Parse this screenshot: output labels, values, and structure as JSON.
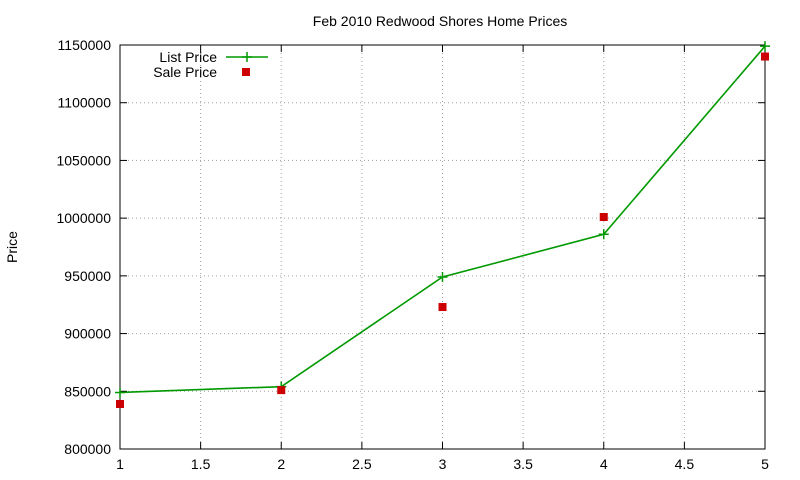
{
  "chart_data": {
    "type": "line",
    "title": "Feb 2010 Redwood Shores Home Prices",
    "xlabel": "",
    "ylabel": "Price",
    "xlim": [
      1,
      5
    ],
    "ylim": [
      800000,
      1150000
    ],
    "xticks": [
      1,
      1.5,
      2,
      2.5,
      3,
      3.5,
      4,
      4.5,
      5
    ],
    "yticks": [
      800000,
      850000,
      900000,
      950000,
      1000000,
      1050000,
      1100000,
      1150000
    ],
    "xtick_labels": [
      "1",
      "1.5",
      "2",
      "2.5",
      "3",
      "3.5",
      "4",
      "4.5",
      "5"
    ],
    "ytick_labels": [
      "800000",
      "850000",
      "900000",
      "950000",
      "1000000",
      "1050000",
      "1100000",
      "1150000"
    ],
    "grid": true,
    "legend_position": "top-left",
    "series": [
      {
        "name": "List Price",
        "style": "linespoints",
        "marker": "plus",
        "color": "#009900",
        "x": [
          1,
          2,
          3,
          4,
          5
        ],
        "y": [
          849000,
          854000,
          949000,
          986000,
          1149000
        ]
      },
      {
        "name": "Sale Price",
        "style": "points",
        "marker": "square",
        "color": "#cc0000",
        "x": [
          1,
          2,
          3,
          4,
          5
        ],
        "y": [
          839000,
          851000,
          923000,
          1001000,
          1140000
        ]
      }
    ]
  }
}
